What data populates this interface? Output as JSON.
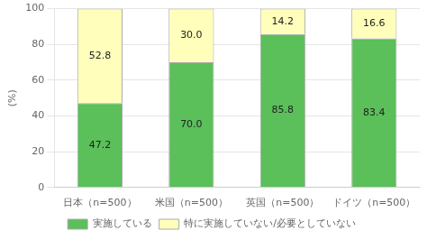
{
  "chart_data": {
    "type": "bar",
    "stacked": true,
    "categories": [
      "日本（n=500）",
      "米国（n=500）",
      "英国（n=500）",
      "ドイツ（n=500）"
    ],
    "series": [
      {
        "name": "実施している",
        "color": "#5bbf5a",
        "values": [
          47.2,
          70.0,
          85.8,
          83.4
        ],
        "value_labels": [
          "47.2",
          "70.0",
          "85.8",
          "83.4"
        ]
      },
      {
        "name": "特に実施していない/必要としていない",
        "color": "#ffffbb",
        "values": [
          52.8,
          30.0,
          14.2,
          16.6
        ],
        "value_labels": [
          "52.8",
          "30.0",
          "14.2",
          "16.6"
        ]
      }
    ],
    "ylabel": "(%)",
    "ylim": [
      0,
      100
    ],
    "yticks": [
      0,
      20,
      40,
      60,
      80,
      100
    ],
    "grid": true,
    "data_labels": true,
    "legend": "bottom"
  }
}
